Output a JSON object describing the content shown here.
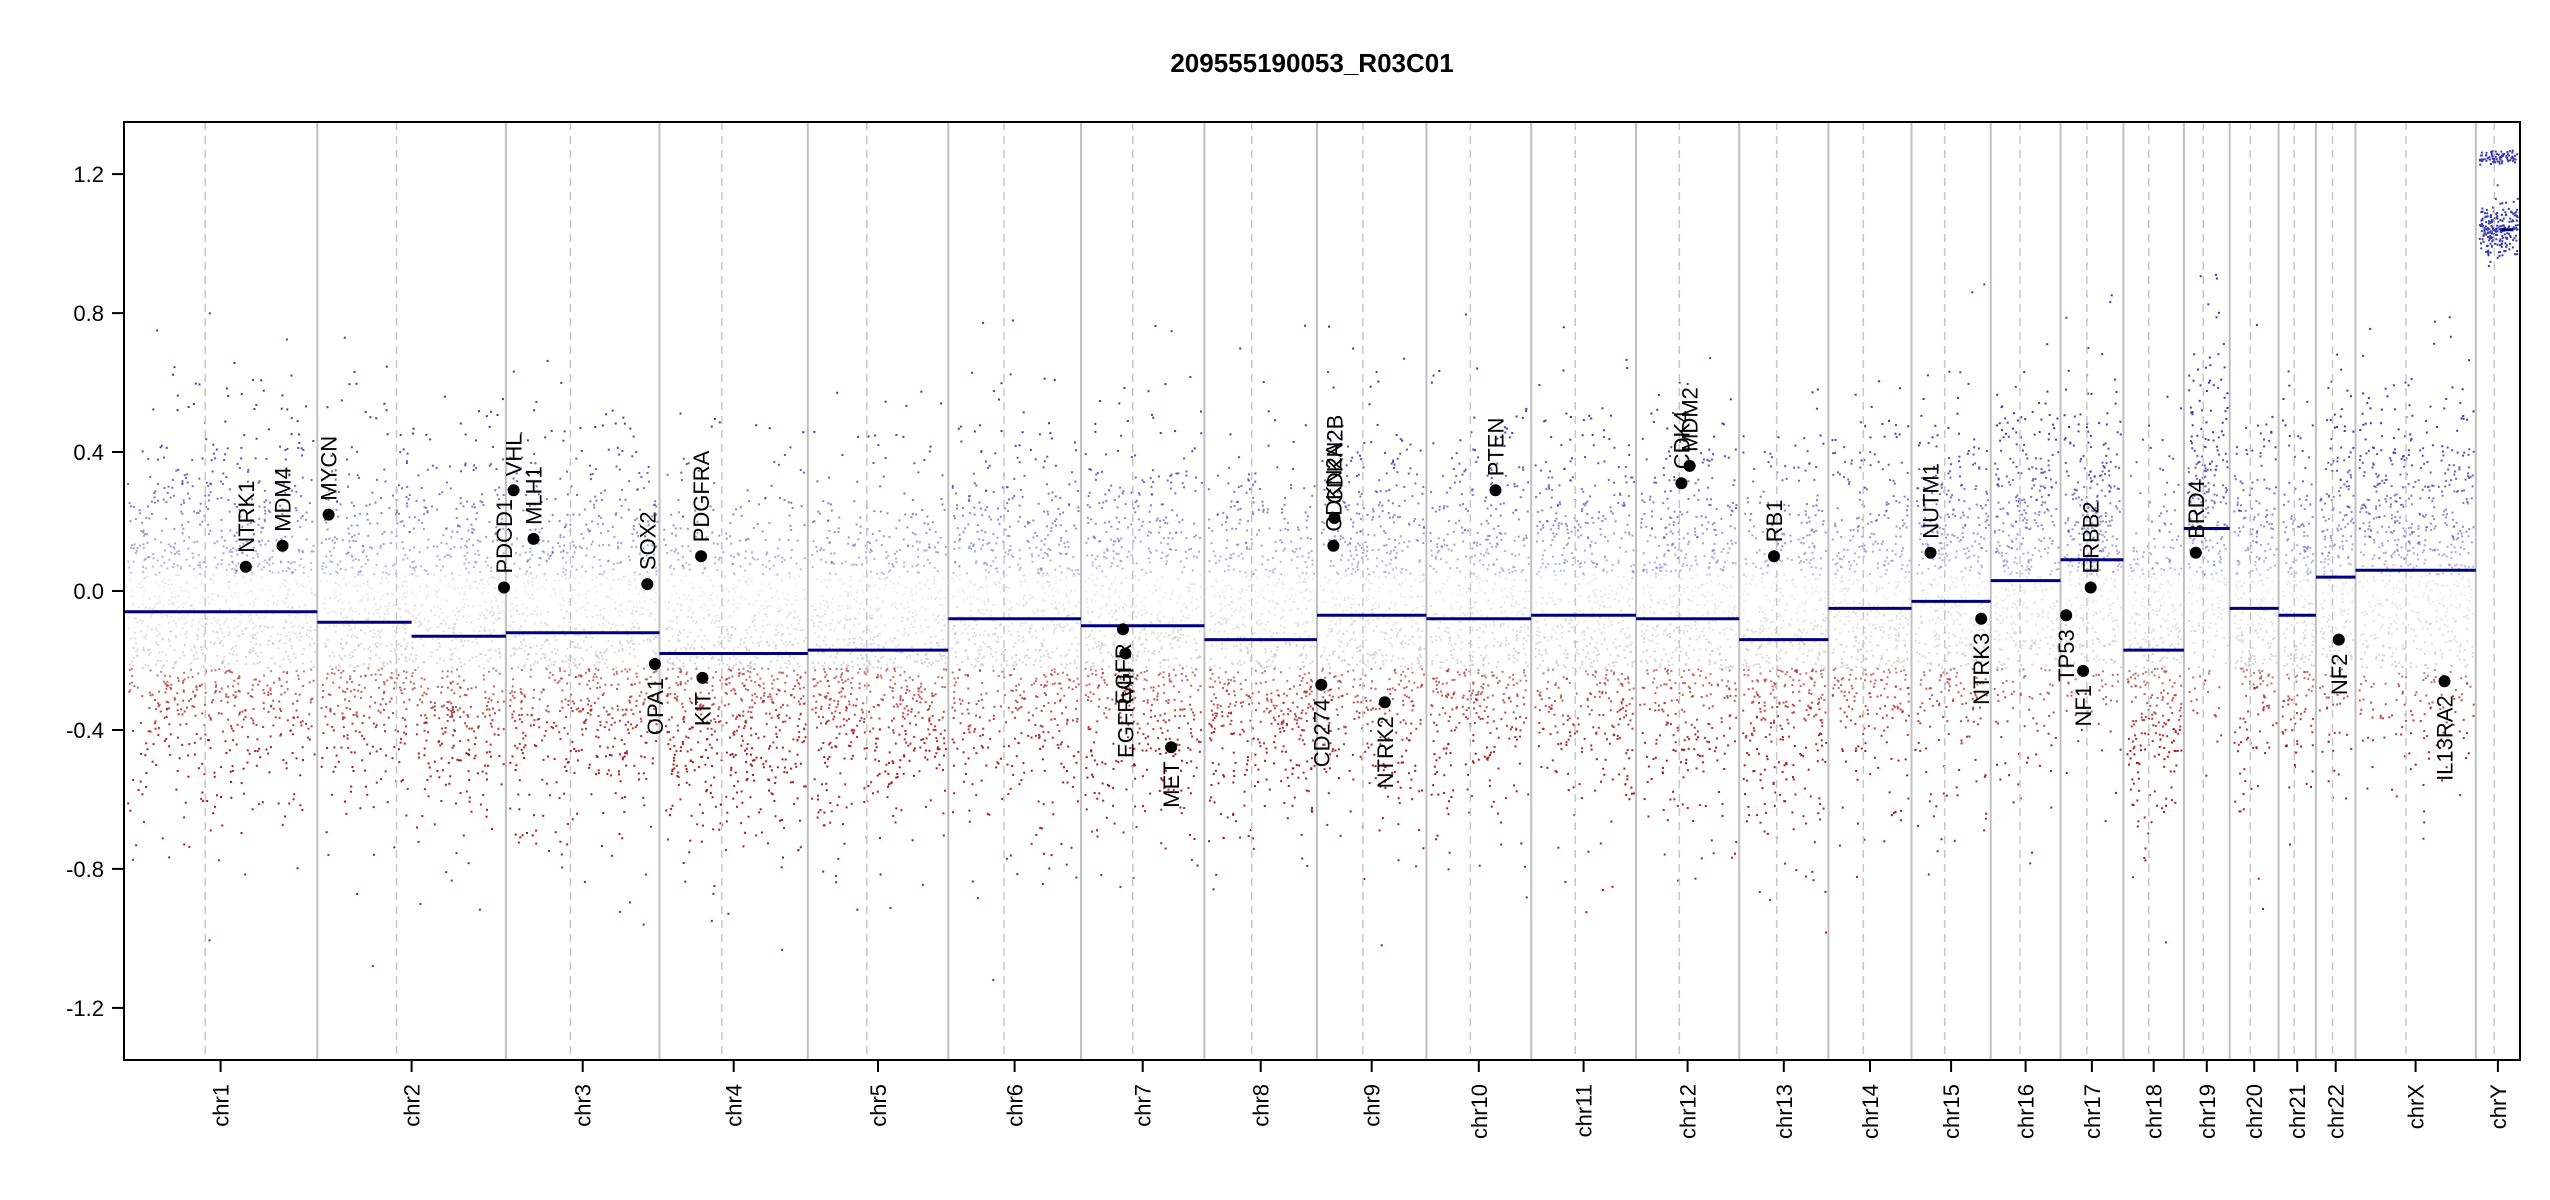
{
  "chart_data": {
    "type": "scatter",
    "title": "209555190053_R03C01",
    "xlabel": "",
    "ylabel": "",
    "ylim": [
      -1.35,
      1.35
    ],
    "y_ticks": [
      1.2,
      0.8,
      0.4,
      0.0,
      -0.4,
      -0.8,
      -1.2
    ],
    "y_tick_labels": [
      "1.2",
      "0.8",
      "0.4",
      "0.0",
      "-0.4",
      "-0.8",
      "-1.2"
    ],
    "chromosomes": [
      {
        "name": "chr1",
        "length": 249,
        "segment": -0.06
      },
      {
        "name": "chr2",
        "length": 243,
        "segment": -0.09,
        "segment2": -0.13
      },
      {
        "name": "chr3",
        "length": 198,
        "segment": -0.12
      },
      {
        "name": "chr4",
        "length": 191,
        "segment": -0.18
      },
      {
        "name": "chr5",
        "length": 181,
        "segment": -0.17
      },
      {
        "name": "chr6",
        "length": 171,
        "segment": -0.08
      },
      {
        "name": "chr7",
        "length": 159,
        "segment": -0.1
      },
      {
        "name": "chr8",
        "length": 145,
        "segment": -0.14
      },
      {
        "name": "chr9",
        "length": 141,
        "segment": -0.07
      },
      {
        "name": "chr10",
        "length": 135,
        "segment": -0.08
      },
      {
        "name": "chr11",
        "length": 135,
        "segment": -0.07
      },
      {
        "name": "chr12",
        "length": 133,
        "segment": -0.08
      },
      {
        "name": "chr13",
        "length": 115,
        "segment": -0.14
      },
      {
        "name": "chr14",
        "length": 107,
        "segment": -0.05
      },
      {
        "name": "chr15",
        "length": 102,
        "segment": -0.03
      },
      {
        "name": "chr16",
        "length": 90,
        "segment": 0.03
      },
      {
        "name": "chr17",
        "length": 81,
        "segment": 0.09
      },
      {
        "name": "chr18",
        "length": 78,
        "segment": -0.17
      },
      {
        "name": "chr19",
        "length": 59,
        "segment": 0.18
      },
      {
        "name": "chr20",
        "length": 63,
        "segment": -0.05
      },
      {
        "name": "chr21",
        "length": 48,
        "segment": -0.07
      },
      {
        "name": "chr22",
        "length": 51,
        "segment": 0.04
      },
      {
        "name": "chrX",
        "length": 155,
        "segment": 0.06
      },
      {
        "name": "chrY",
        "length": 57,
        "segment": 1.04
      }
    ],
    "genes": [
      {
        "name": "NTRK1",
        "chr": "chr1",
        "pos": 0.63,
        "value": 0.07,
        "label_side": "up"
      },
      {
        "name": "MDM4",
        "chr": "chr1",
        "pos": 0.82,
        "value": 0.13,
        "label_side": "up"
      },
      {
        "name": "MYCN",
        "chr": "chr2",
        "pos": 0.06,
        "value": 0.22,
        "label_side": "up"
      },
      {
        "name": "PDCD1",
        "chr": "chr2",
        "pos": 0.99,
        "value": 0.01,
        "label_side": "up"
      },
      {
        "name": "VHL",
        "chr": "chr3",
        "pos": 0.05,
        "value": 0.29,
        "label_side": "up"
      },
      {
        "name": "MLH1",
        "chr": "chr3",
        "pos": 0.18,
        "value": 0.15,
        "label_side": "up"
      },
      {
        "name": "SOX2",
        "chr": "chr3",
        "pos": 0.92,
        "value": 0.02,
        "label_side": "up"
      },
      {
        "name": "OPA1",
        "chr": "chr3",
        "pos": 0.97,
        "value": -0.21,
        "label_side": "down"
      },
      {
        "name": "PDGFRA",
        "chr": "chr4",
        "pos": 0.28,
        "value": 0.1,
        "label_side": "up"
      },
      {
        "name": "KIT",
        "chr": "chr4",
        "pos": 0.29,
        "value": -0.25,
        "label_side": "down"
      },
      {
        "name": "EGFR",
        "chr": "chr7",
        "pos": 0.34,
        "value": -0.11,
        "label_side": "down"
      },
      {
        "name": "EGFRvIII",
        "chr": "chr7",
        "pos": 0.36,
        "value": -0.18,
        "label_side": "down"
      },
      {
        "name": "MET",
        "chr": "chr7",
        "pos": 0.73,
        "value": -0.45,
        "label_side": "down"
      },
      {
        "name": "CD274",
        "chr": "chr9",
        "pos": 0.04,
        "value": -0.27,
        "label_side": "down"
      },
      {
        "name": "CDKN2A",
        "chr": "chr9",
        "pos": 0.15,
        "value": 0.13,
        "label_side": "up"
      },
      {
        "name": "CDKN2B",
        "chr": "chr9",
        "pos": 0.16,
        "value": 0.21,
        "label_side": "up"
      },
      {
        "name": "NTRK2",
        "chr": "chr9",
        "pos": 0.62,
        "value": -0.32,
        "label_side": "down"
      },
      {
        "name": "PTEN",
        "chr": "chr10",
        "pos": 0.66,
        "value": 0.29,
        "label_side": "up"
      },
      {
        "name": "CDK4",
        "chr": "chr12",
        "pos": 0.44,
        "value": 0.31,
        "label_side": "up"
      },
      {
        "name": "MDM2",
        "chr": "chr12",
        "pos": 0.52,
        "value": 0.36,
        "label_side": "up"
      },
      {
        "name": "RB1",
        "chr": "chr13",
        "pos": 0.39,
        "value": 0.1,
        "label_side": "up"
      },
      {
        "name": "NUTM1",
        "chr": "chr15",
        "pos": 0.24,
        "value": 0.11,
        "label_side": "up"
      },
      {
        "name": "NTRK3",
        "chr": "chr15",
        "pos": 0.88,
        "value": -0.08,
        "label_side": "down"
      },
      {
        "name": "TP53",
        "chr": "chr17",
        "pos": 0.09,
        "value": -0.07,
        "label_side": "down"
      },
      {
        "name": "NF1",
        "chr": "chr17",
        "pos": 0.36,
        "value": -0.23,
        "label_side": "down"
      },
      {
        "name": "ERBB2",
        "chr": "chr17",
        "pos": 0.48,
        "value": 0.01,
        "label_side": "up"
      },
      {
        "name": "BRD4",
        "chr": "chr19",
        "pos": 0.26,
        "value": 0.11,
        "label_side": "up"
      },
      {
        "name": "NF2",
        "chr": "chr22",
        "pos": 0.58,
        "value": -0.14,
        "label_side": "down"
      },
      {
        "name": "IL13RA2",
        "chr": "chrX",
        "pos": 0.74,
        "value": -0.26,
        "label_side": "down"
      }
    ],
    "point_colors": {
      "high": "#3b3bb0",
      "neutral": "#b8b8b8",
      "low": "#a81c1c"
    },
    "segment_color": "#000080",
    "grid": false
  }
}
